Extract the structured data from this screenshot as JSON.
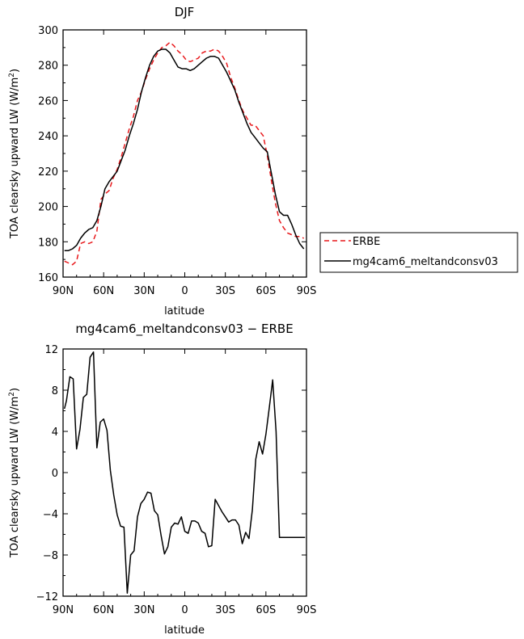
{
  "colors": {
    "obs": "#e8191c",
    "model": "#000000",
    "axis": "#000000",
    "background": "#ffffff"
  },
  "legend": {
    "entries": [
      {
        "label": "ERBE",
        "color": "#e8191c",
        "style": "dashed"
      },
      {
        "label": "mg4cam6_meltandconsv03",
        "color": "#000000",
        "style": "solid"
      }
    ],
    "placement": "right of top panel"
  },
  "chart_data": [
    {
      "type": "line",
      "title": "DJF",
      "xlabel": "latitude",
      "ylabel": "TOA clearsky upward LW (W/m²)",
      "xlim": [
        90,
        -90
      ],
      "ylim": [
        160,
        300
      ],
      "x_ticks": [
        90,
        60,
        30,
        0,
        -30,
        -60,
        -90
      ],
      "x_tick_labels": [
        "90N",
        "60N",
        "30N",
        "0",
        "30S",
        "60S",
        "90S"
      ],
      "y_ticks": [
        160,
        180,
        200,
        220,
        240,
        260,
        280,
        300
      ],
      "y_tick_labels": [
        "160",
        "180",
        "200",
        "220",
        "240",
        "260",
        "280",
        "300"
      ],
      "grid": false,
      "series": [
        {
          "name": "ERBE",
          "color": "#e8191c",
          "style": "dashed",
          "x": [
            89,
            86,
            83,
            80,
            77,
            74,
            71,
            68,
            65,
            62,
            59,
            56,
            53,
            50,
            47,
            44,
            41,
            38,
            35,
            32,
            29,
            26,
            23,
            20,
            17,
            14,
            11,
            8,
            5,
            2,
            -1,
            -4,
            -7,
            -10,
            -13,
            -16,
            -19,
            -22,
            -25,
            -28,
            -31,
            -34,
            -37,
            -40,
            -43,
            -46,
            -49,
            -52,
            -55,
            -58,
            -61,
            -64,
            -67,
            -70,
            -73,
            -76,
            -79,
            -82,
            -85,
            -88
          ],
          "y": [
            169,
            168,
            167,
            169,
            179,
            180,
            179,
            180,
            186,
            204,
            207,
            209,
            216,
            221,
            228,
            236,
            244,
            251,
            260,
            265,
            272,
            278,
            283,
            287,
            290,
            291,
            293,
            291,
            288,
            286,
            283,
            282,
            283,
            284,
            287,
            288,
            288,
            289,
            288,
            285,
            281,
            273,
            267,
            260,
            254,
            250,
            246,
            246,
            243,
            240,
            229,
            215,
            202,
            192,
            188,
            185,
            184,
            183,
            183,
            182
          ]
        },
        {
          "name": "mg4cam6_meltandconsv03",
          "color": "#000000",
          "style": "solid",
          "x": [
            89,
            86,
            83,
            80,
            77,
            74,
            71,
            68,
            65,
            62,
            59,
            56,
            53,
            50,
            47,
            44,
            41,
            38,
            35,
            32,
            29,
            26,
            23,
            20,
            17,
            14,
            11,
            8,
            5,
            2,
            -1,
            -4,
            -7,
            -10,
            -13,
            -16,
            -19,
            -22,
            -25,
            -28,
            -31,
            -34,
            -37,
            -40,
            -43,
            -46,
            -49,
            -52,
            -55,
            -58,
            -61,
            -64,
            -67,
            -70,
            -73,
            -76,
            -79,
            -82,
            -85,
            -88
          ],
          "y": [
            175,
            175,
            176,
            178,
            182,
            185,
            187,
            188,
            192,
            200,
            210,
            214,
            217,
            220,
            226,
            232,
            240,
            247,
            255,
            265,
            273,
            280,
            285,
            288,
            289,
            289,
            287,
            283,
            279,
            278,
            278,
            277,
            278,
            280,
            282,
            284,
            285,
            285,
            284,
            280,
            276,
            271,
            266,
            259,
            253,
            247,
            242,
            239,
            236,
            233,
            231,
            219,
            207,
            197,
            195,
            195,
            190,
            184,
            179,
            176
          ]
        }
      ]
    },
    {
      "type": "line",
      "title": "mg4cam6_meltandconsv03 − ERBE",
      "xlabel": "latitude",
      "ylabel": "TOA clearsky upward LW (W/m²)",
      "xlim": [
        90,
        -90
      ],
      "ylim": [
        -12,
        12
      ],
      "x_ticks": [
        90,
        60,
        30,
        0,
        -30,
        -60,
        -90
      ],
      "x_tick_labels": [
        "90N",
        "60N",
        "30N",
        "0",
        "30S",
        "60S",
        "90S"
      ],
      "y_ticks": [
        -12,
        -8,
        -4,
        0,
        4,
        8,
        12
      ],
      "y_tick_labels": [
        "−12",
        "−8",
        "−4",
        "0",
        "4",
        "8",
        "12"
      ],
      "grid": false,
      "series": [
        {
          "name": "mg4cam6_meltandconsv03 − ERBE",
          "color": "#000000",
          "style": "solid",
          "x": [
            89,
            87.5,
            85,
            82.5,
            80,
            77.5,
            75,
            72.5,
            70,
            67.5,
            65,
            62.5,
            60,
            57.5,
            55,
            52.5,
            50,
            47.5,
            45,
            42.5,
            40,
            37.5,
            35,
            32.5,
            30,
            27.5,
            25,
            22.5,
            20,
            17.5,
            15,
            12.5,
            10,
            7.5,
            5,
            2.5,
            0,
            -2.5,
            -5,
            -7.5,
            -10,
            -12.5,
            -15,
            -17.5,
            -20,
            -22.5,
            -25,
            -27.5,
            -30,
            -32.5,
            -35,
            -37.5,
            -40,
            -42.5,
            -45,
            -47.5,
            -50,
            -52.5,
            -55,
            -57.5,
            -60,
            -62.5,
            -65,
            -67.5,
            -70,
            -72.5,
            -75,
            -77.5,
            -80,
            -82.5,
            -85,
            -87.5,
            -89
          ],
          "y": [
            6.2,
            7.0,
            9.3,
            9.1,
            2.3,
            4.2,
            7.3,
            7.6,
            11.2,
            11.7,
            2.4,
            4.9,
            5.2,
            4.1,
            0.2,
            -2.2,
            -4.1,
            -5.2,
            -5.3,
            -11.7,
            -8.0,
            -7.6,
            -4.3,
            -3.0,
            -2.6,
            -1.9,
            -2.0,
            -3.7,
            -4.1,
            -6.1,
            -7.9,
            -7.2,
            -5.3,
            -4.9,
            -5.0,
            -4.3,
            -5.7,
            -5.9,
            -4.7,
            -4.7,
            -4.9,
            -5.7,
            -5.9,
            -7.2,
            -7.1,
            -2.6,
            -3.2,
            -3.8,
            -4.3,
            -4.8,
            -4.6,
            -4.6,
            -5.1,
            -6.9,
            -5.8,
            -6.4,
            -3.6,
            1.3,
            3.0,
            1.8,
            3.7,
            6.3,
            9.0,
            4.0,
            -6.3,
            -6.3,
            -6.3,
            -6.3,
            -6.3,
            -6.3,
            -6.3,
            -6.3,
            -6.3
          ]
        }
      ]
    }
  ]
}
